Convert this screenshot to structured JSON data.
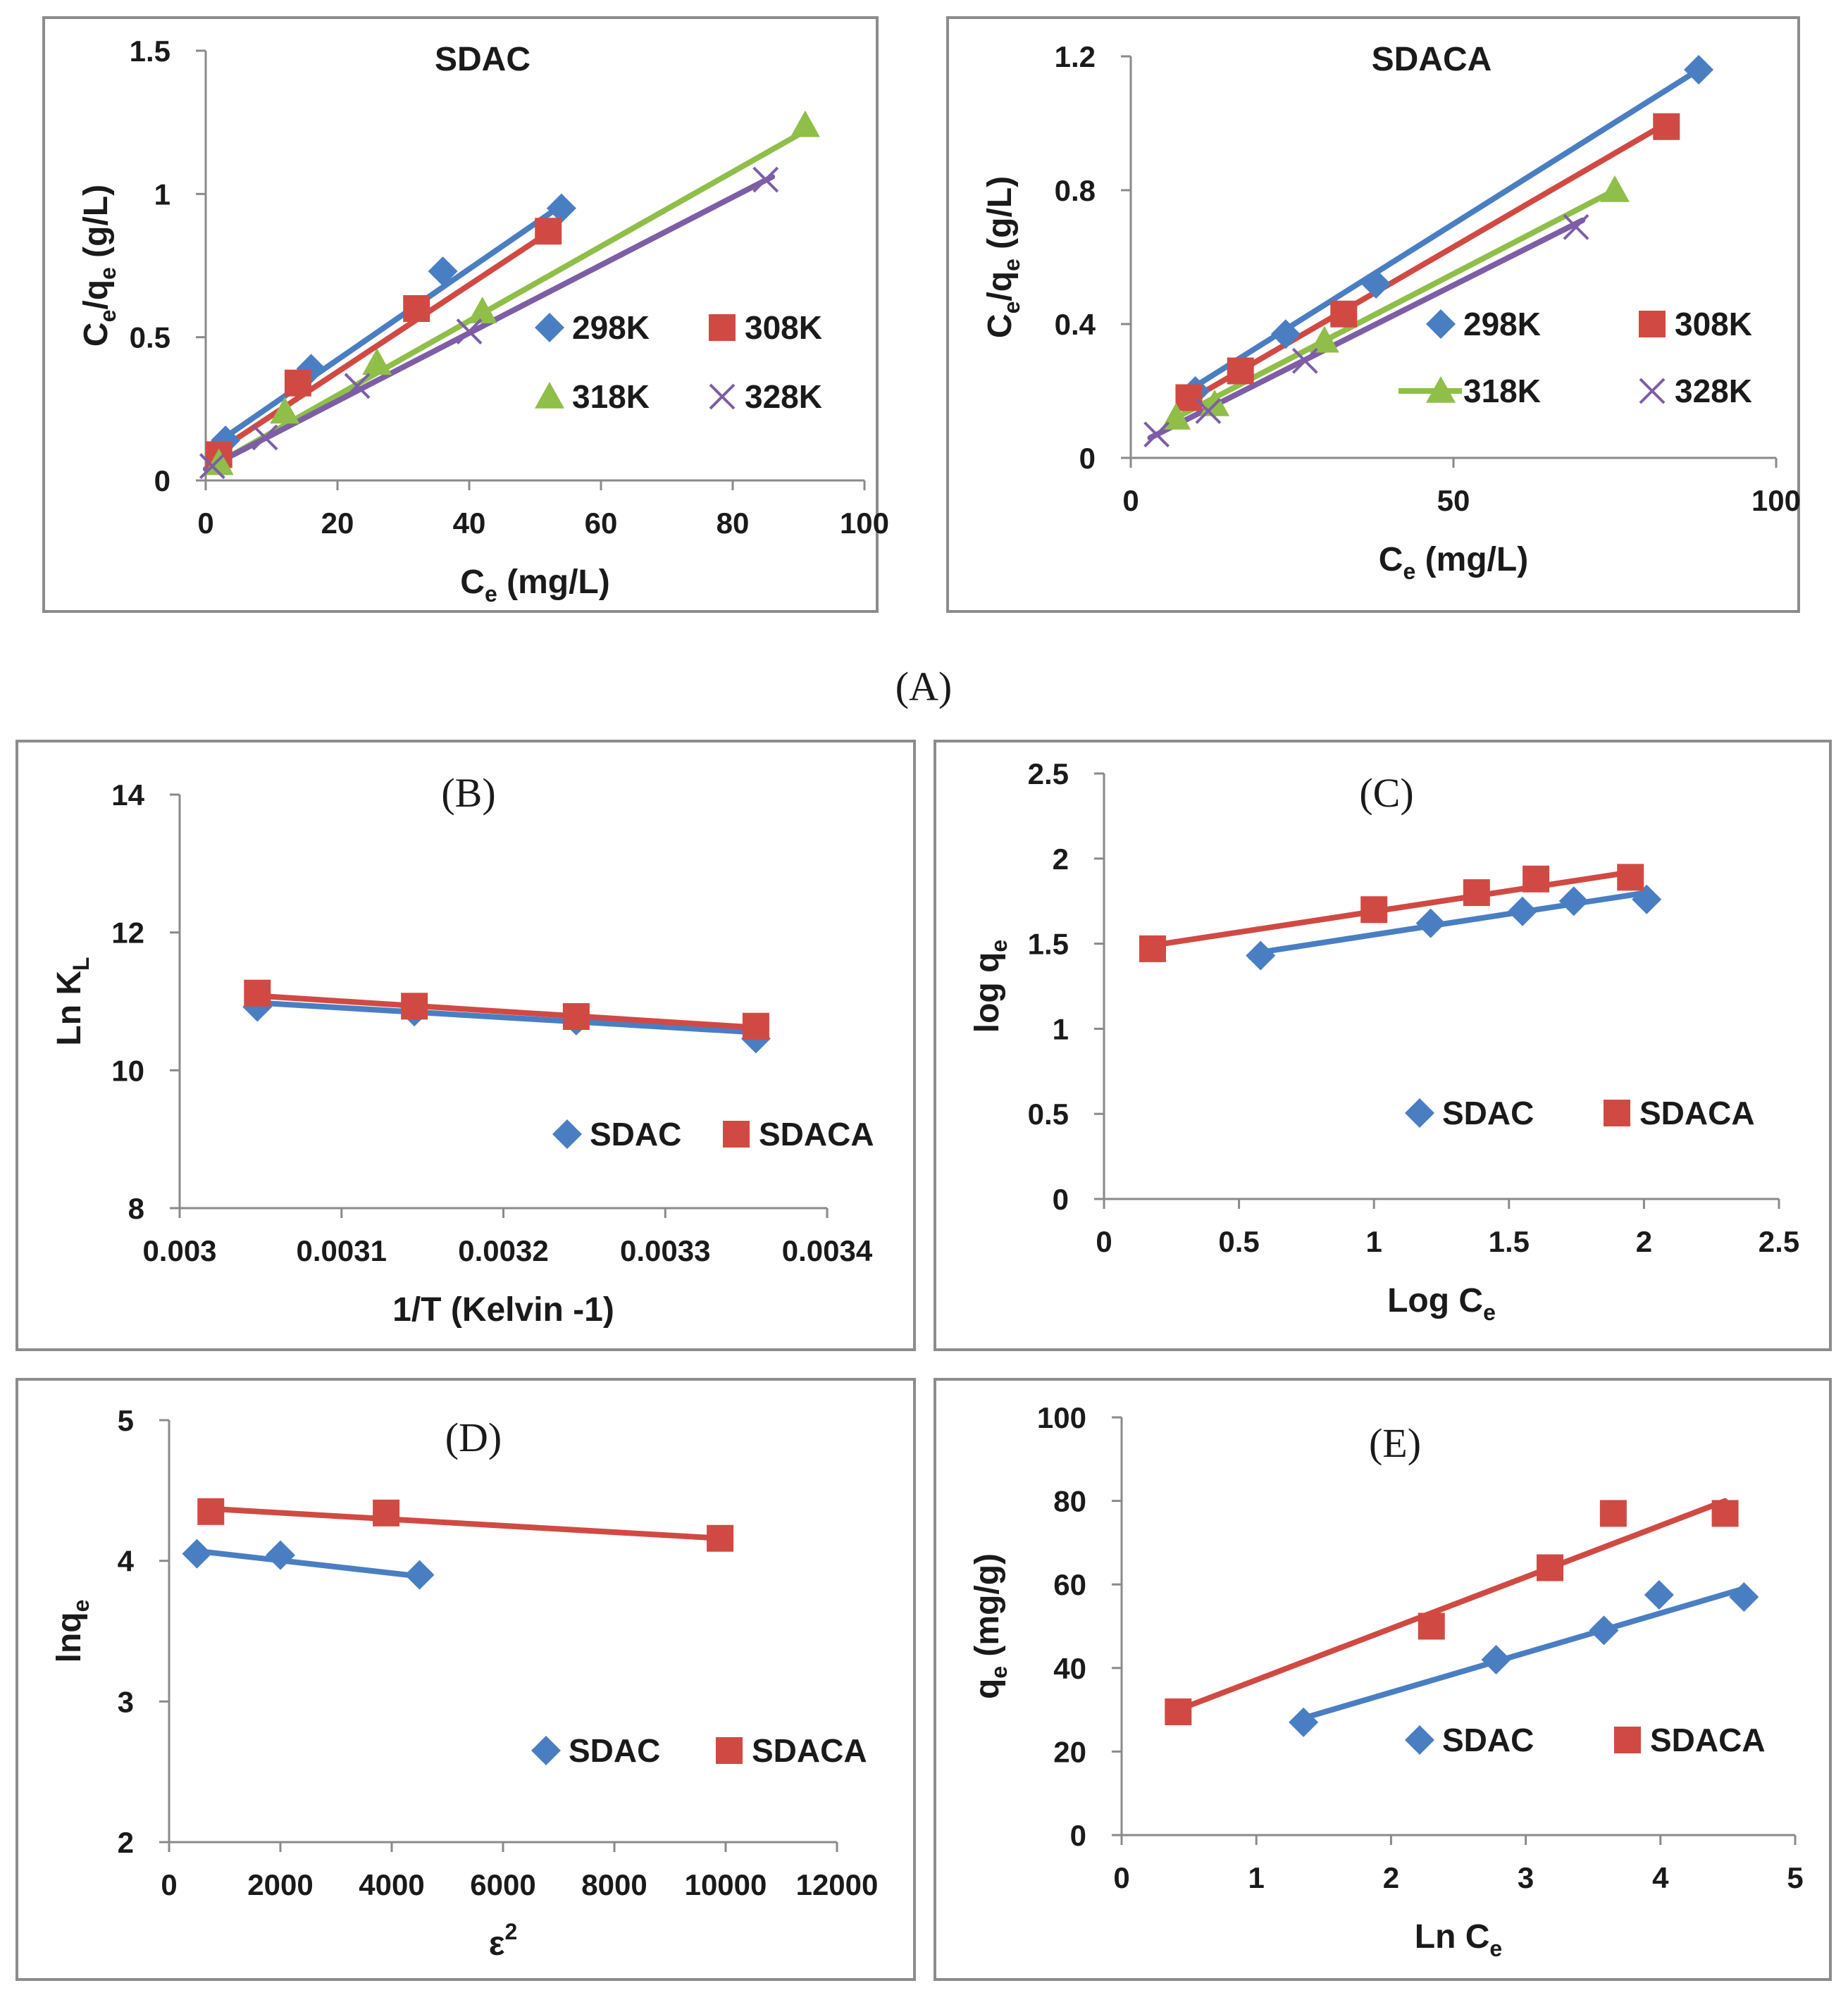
{
  "figure_label": "(A)",
  "colors": {
    "blue": "#4a7ec2",
    "red": "#d04a43",
    "green": "#8fbe49",
    "purple": "#7d5ea6",
    "axis": "#8a8a8a",
    "frame": "#8c8c8c",
    "text": "#1a1a1a"
  },
  "chart_data": [
    {
      "id": "A1",
      "type": "scatter",
      "title": "SDAC",
      "title_style": "bold",
      "xlabel_main": "C",
      "xlabel_sub": "e",
      "xlabel_rest": " (mg/L)",
      "ylabel_a": "C",
      "ylabel_a_sub": "e",
      "ylabel_b": "/q",
      "ylabel_b_sub": "e",
      "ylabel_rest": " (g/L)",
      "xlim": [
        0,
        100
      ],
      "ylim": [
        0,
        1.5
      ],
      "xticks": [
        "0",
        "20",
        "40",
        "60",
        "80",
        "100"
      ],
      "yticks": [
        "0",
        "0.5",
        "1",
        "1.5"
      ],
      "legend_cols": 2,
      "series": [
        {
          "name": "298K",
          "marker": "diamond",
          "color": "#4a7ec2",
          "x": [
            3,
            16,
            36,
            54
          ],
          "y": [
            0.14,
            0.39,
            0.73,
            0.95
          ],
          "fit": [
            [
              1,
              0.12
            ],
            [
              54,
              0.96
            ]
          ]
        },
        {
          "name": "308K",
          "marker": "square",
          "color": "#d04a43",
          "x": [
            2,
            14,
            32,
            52
          ],
          "y": [
            0.09,
            0.34,
            0.6,
            0.87
          ],
          "fit": [
            [
              1,
              0.09
            ],
            [
              53,
              0.88
            ]
          ]
        },
        {
          "name": "318K",
          "marker": "triangle",
          "color": "#8fbe49",
          "x": [
            2,
            12,
            26,
            42,
            91
          ],
          "y": [
            0.06,
            0.24,
            0.41,
            0.59,
            1.24
          ],
          "fit": [
            [
              1,
              0.05
            ],
            [
              91,
              1.22
            ]
          ]
        },
        {
          "name": "328K",
          "marker": "x",
          "color": "#7d5ea6",
          "x": [
            1,
            9,
            23,
            40,
            85
          ],
          "y": [
            0.05,
            0.15,
            0.33,
            0.52,
            1.05
          ],
          "fit": [
            [
              0,
              0.04
            ],
            [
              86,
              1.06
            ]
          ]
        }
      ]
    },
    {
      "id": "A2",
      "type": "scatter",
      "title": "SDACA",
      "title_style": "bold",
      "xlabel_main": "C",
      "xlabel_sub": "e",
      "xlabel_rest": " (mg/L)",
      "ylabel_a": "C",
      "ylabel_a_sub": "e",
      "ylabel_b": "/q",
      "ylabel_b_sub": "e",
      "ylabel_rest": " (g/L)",
      "xlim": [
        0,
        100
      ],
      "ylim": [
        0,
        1.2
      ],
      "xticks": [
        "0",
        "50",
        "100"
      ],
      "yticks": [
        "0",
        "0.4",
        "0.8",
        "1.2"
      ],
      "legend_cols": 2,
      "series": [
        {
          "name": "298K",
          "marker": "diamond",
          "color": "#4a7ec2",
          "x": [
            10,
            24,
            38,
            88
          ],
          "y": [
            0.2,
            0.37,
            0.52,
            1.16
          ],
          "fit": [
            [
              8,
              0.19
            ],
            [
              88,
              1.16
            ]
          ]
        },
        {
          "name": "308K",
          "marker": "square",
          "color": "#d04a43",
          "x": [
            9,
            17,
            33,
            83
          ],
          "y": [
            0.18,
            0.26,
            0.43,
            0.99
          ],
          "fit": [
            [
              8,
              0.16
            ],
            [
              83,
              1.0
            ]
          ]
        },
        {
          "name": "318K",
          "marker": "triangle",
          "color": "#8fbe49",
          "x": [
            7,
            13,
            30,
            75
          ],
          "y": [
            0.12,
            0.16,
            0.35,
            0.8
          ],
          "fit": [
            [
              6,
              0.11
            ],
            [
              75,
              0.8
            ]
          ]
        },
        {
          "name": "328K",
          "marker": "x",
          "color": "#7d5ea6",
          "x": [
            4,
            12,
            27,
            69
          ],
          "y": [
            0.07,
            0.14,
            0.29,
            0.69
          ],
          "fit": [
            [
              3,
              0.06
            ],
            [
              70,
              0.71
            ]
          ]
        }
      ]
    },
    {
      "id": "B",
      "type": "scatter",
      "title": "(B)",
      "title_style": "serif",
      "xlabel_main": "1/T (Kelvin -1)",
      "xlabel_sub": "",
      "xlabel_rest": "",
      "ylabel_a": "Ln K",
      "ylabel_a_sub": "L",
      "ylabel_b": "",
      "ylabel_b_sub": "",
      "ylabel_rest": "",
      "xlim": [
        0.003,
        0.0034
      ],
      "ylim": [
        8,
        14
      ],
      "xticks": [
        "0.003",
        "0.0031",
        "0.0032",
        "0.0033",
        "0.0034"
      ],
      "yticks": [
        "8",
        "10",
        "12",
        "14"
      ],
      "legend_cols": 2,
      "series": [
        {
          "name": "SDAC",
          "marker": "diamond",
          "color": "#4a7ec2",
          "x": [
            0.003048,
            0.003145,
            0.003245,
            0.003356
          ],
          "y": [
            10.92,
            10.85,
            10.72,
            10.46
          ],
          "fit": [
            [
              0.003048,
              10.98
            ],
            [
              0.003356,
              10.55
            ]
          ]
        },
        {
          "name": "SDACA",
          "marker": "square",
          "color": "#d04a43",
          "x": [
            0.003048,
            0.003145,
            0.003245,
            0.003356
          ],
          "y": [
            11.12,
            10.93,
            10.78,
            10.64
          ],
          "fit": [
            [
              0.003048,
              11.08
            ],
            [
              0.003356,
              10.62
            ]
          ]
        }
      ]
    },
    {
      "id": "C",
      "type": "scatter",
      "title": "(C)",
      "title_style": "serif",
      "xlabel_main": "Log C",
      "xlabel_sub": "e",
      "xlabel_rest": "",
      "ylabel_a": "log q",
      "ylabel_a_sub": "e",
      "ylabel_b": "",
      "ylabel_b_sub": "",
      "ylabel_rest": "",
      "xlim": [
        0,
        2.5
      ],
      "ylim": [
        0,
        2.5
      ],
      "xticks": [
        "0",
        "0.5",
        "1",
        "1.5",
        "2",
        "2.5"
      ],
      "yticks": [
        "0",
        "0.5",
        "1",
        "1.5",
        "2",
        "2.5"
      ],
      "legend_cols": 2,
      "series": [
        {
          "name": "SDAC",
          "marker": "diamond",
          "color": "#4a7ec2",
          "x": [
            0.58,
            1.21,
            1.55,
            1.74,
            2.01
          ],
          "y": [
            1.43,
            1.62,
            1.69,
            1.75,
            1.76
          ],
          "fit": [
            [
              0.58,
              1.45
            ],
            [
              2.01,
              1.8
            ]
          ]
        },
        {
          "name": "SDACA",
          "marker": "square",
          "color": "#d04a43",
          "x": [
            0.18,
            1.0,
            1.38,
            1.6,
            1.95
          ],
          "y": [
            1.47,
            1.7,
            1.8,
            1.88,
            1.89
          ],
          "fit": [
            [
              0.18,
              1.49
            ],
            [
              1.95,
              1.92
            ]
          ]
        }
      ]
    },
    {
      "id": "D",
      "type": "scatter",
      "title": "(D)",
      "title_style": "serif",
      "xlabel_main": "ε",
      "xlabel_sub": "",
      "xlabel_rest": "",
      "xlabel_sup": "2",
      "ylabel_a": "lnq",
      "ylabel_a_sub": "e",
      "ylabel_b": "",
      "ylabel_b_sub": "",
      "ylabel_rest": "",
      "xlim": [
        0,
        12000
      ],
      "ylim": [
        2,
        5
      ],
      "xticks": [
        "0",
        "2000",
        "4000",
        "6000",
        "8000",
        "10000",
        "12000"
      ],
      "yticks": [
        "2",
        "3",
        "4",
        "5"
      ],
      "legend_cols": 2,
      "series": [
        {
          "name": "SDAC",
          "marker": "diamond",
          "color": "#4a7ec2",
          "x": [
            500,
            2000,
            4500
          ],
          "y": [
            4.05,
            4.04,
            3.9
          ],
          "fit": [
            [
              500,
              4.07
            ],
            [
              4500,
              3.89
            ]
          ]
        },
        {
          "name": "SDACA",
          "marker": "square",
          "color": "#d04a43",
          "x": [
            750,
            3900,
            9900
          ],
          "y": [
            4.35,
            4.34,
            4.16
          ],
          "fit": [
            [
              750,
              4.37
            ],
            [
              9900,
              4.16
            ]
          ]
        }
      ]
    },
    {
      "id": "E",
      "type": "scatter",
      "title": "(E)",
      "title_style": "serif",
      "xlabel_main": "Ln C",
      "xlabel_sub": "e",
      "xlabel_rest": "",
      "ylabel_a": "q",
      "ylabel_a_sub": "e",
      "ylabel_b": "",
      "ylabel_b_sub": "",
      "ylabel_rest": " (mg/g)",
      "xlim": [
        0,
        5
      ],
      "ylim": [
        0,
        100
      ],
      "xticks": [
        "0",
        "1",
        "2",
        "3",
        "4",
        "5"
      ],
      "yticks": [
        "0",
        "20",
        "40",
        "60",
        "80",
        "100"
      ],
      "legend_cols": 2,
      "series": [
        {
          "name": "SDAC",
          "marker": "diamond",
          "color": "#4a7ec2",
          "x": [
            1.35,
            2.78,
            3.58,
            3.99,
            4.62
          ],
          "y": [
            27,
            42,
            49,
            57.5,
            57
          ],
          "fit": [
            [
              1.35,
              28
            ],
            [
              4.62,
              59
            ]
          ]
        },
        {
          "name": "SDACA",
          "marker": "square",
          "color": "#d04a43",
          "x": [
            0.42,
            2.3,
            3.18,
            3.65,
            4.48
          ],
          "y": [
            29.5,
            50,
            64,
            77,
            77
          ],
          "fit": [
            [
              0.42,
              30
            ],
            [
              4.48,
              80
            ]
          ]
        }
      ]
    }
  ]
}
